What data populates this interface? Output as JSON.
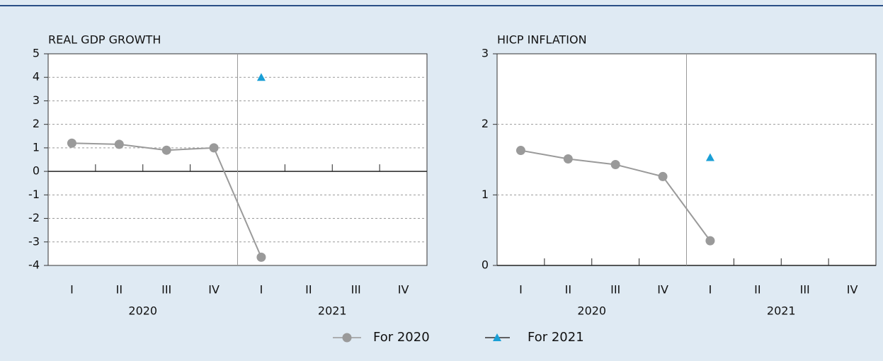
{
  "chart_data": [
    {
      "type": "line",
      "title": "REAL GDP GROWTH",
      "categories": [
        "I",
        "II",
        "III",
        "IV",
        "I",
        "II",
        "III",
        "IV"
      ],
      "category_groups": [
        "2020",
        "2021"
      ],
      "series": [
        {
          "name": "For 2020",
          "color": "#9a9a9a",
          "marker": "circle",
          "values": [
            1.2,
            1.15,
            0.9,
            1.0,
            -3.65,
            null,
            null,
            null
          ]
        },
        {
          "name": "For 2021",
          "color": "#1a9fd6",
          "marker": "triangle",
          "values": [
            null,
            null,
            null,
            null,
            4.0,
            null,
            null,
            null
          ]
        }
      ],
      "ylim": [
        -4,
        5
      ],
      "yticks": [
        -4,
        -3,
        -2,
        -1,
        0,
        1,
        2,
        3,
        4,
        5
      ],
      "grid": true
    },
    {
      "type": "line",
      "title": "HICP INFLATION",
      "categories": [
        "I",
        "II",
        "III",
        "IV",
        "I",
        "II",
        "III",
        "IV"
      ],
      "category_groups": [
        "2020",
        "2021"
      ],
      "series": [
        {
          "name": "For 2020",
          "color": "#9a9a9a",
          "marker": "circle",
          "values": [
            1.63,
            1.51,
            1.43,
            1.26,
            0.35,
            null,
            null,
            null
          ]
        },
        {
          "name": "For 2021",
          "color": "#1a9fd6",
          "marker": "triangle",
          "values": [
            null,
            null,
            null,
            null,
            1.53,
            null,
            null,
            null
          ]
        }
      ],
      "ylim": [
        0,
        3
      ],
      "yticks": [
        0,
        1,
        2,
        3
      ],
      "grid": true
    }
  ]
}
